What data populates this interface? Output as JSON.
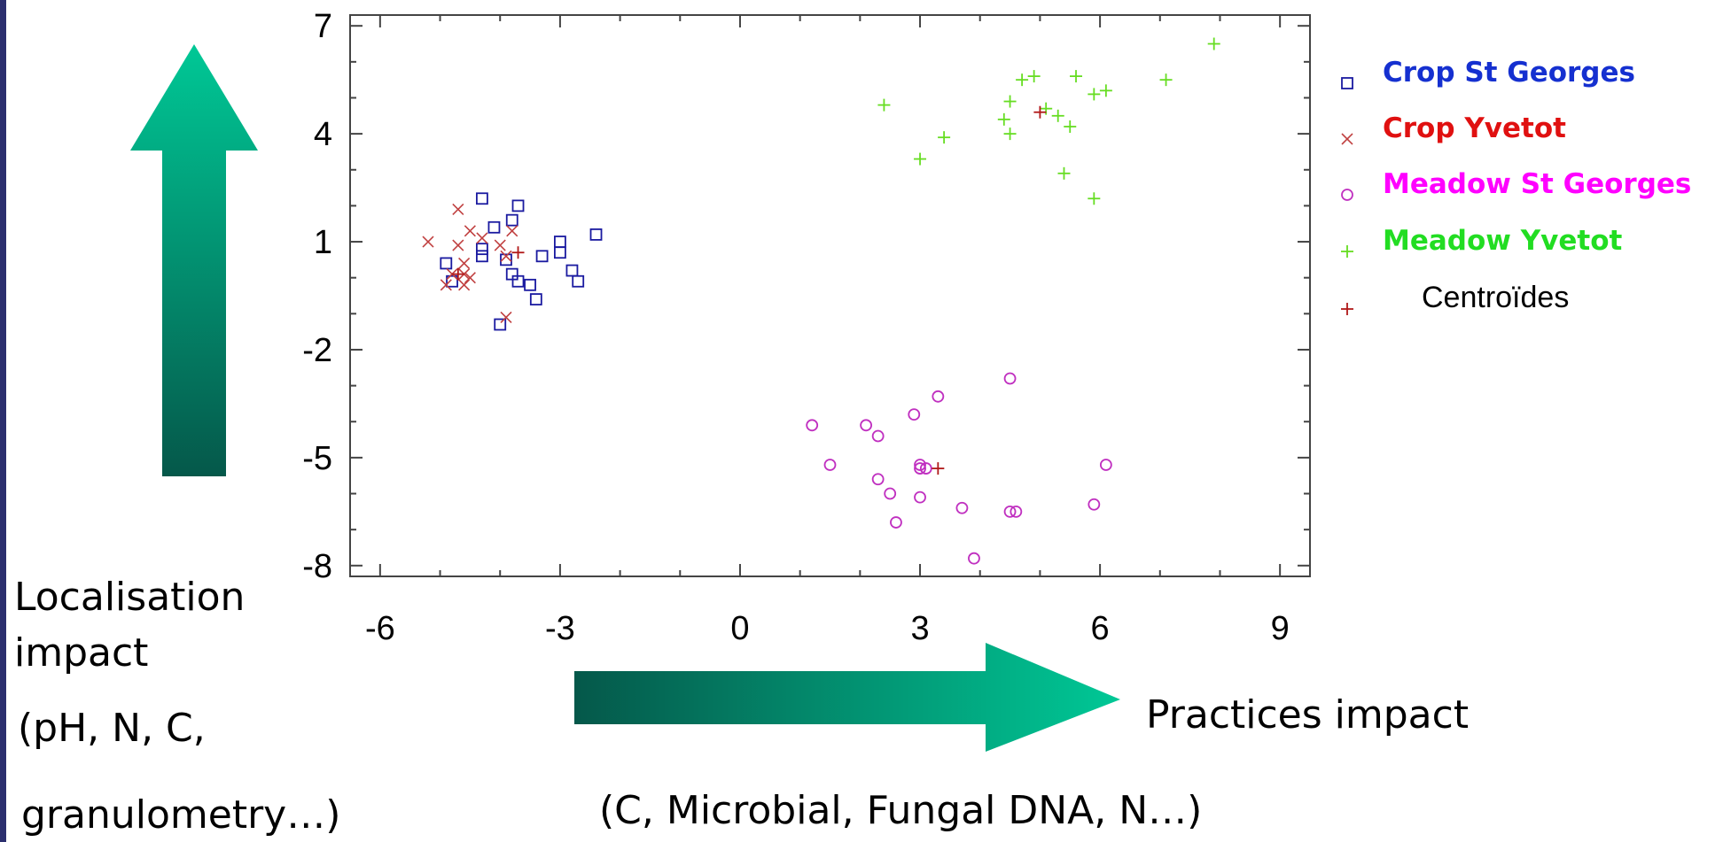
{
  "chart_data": {
    "type": "scatter",
    "title": "",
    "xlabel": "",
    "ylabel": "",
    "xlim": [
      -6.5,
      9.5
    ],
    "ylim": [
      -8.3,
      7.3
    ],
    "xticks": [
      "-6",
      "-3",
      "0",
      "3",
      "6",
      "9"
    ],
    "yticks": [
      "7",
      "4",
      "1",
      "-2",
      "-5",
      "-8"
    ],
    "grid": false,
    "legend_position": "right",
    "series": [
      {
        "name": "Crop St Georges",
        "marker": "square",
        "color": "#1a1aa0",
        "label_color": "#1530d0",
        "points": [
          [
            -4.3,
            2.2
          ],
          [
            -3.7,
            2.0
          ],
          [
            -3.8,
            1.6
          ],
          [
            -4.1,
            1.4
          ],
          [
            -2.4,
            1.2
          ],
          [
            -3.0,
            1.0
          ],
          [
            -3.0,
            0.7
          ],
          [
            -4.3,
            0.8
          ],
          [
            -4.3,
            0.6
          ],
          [
            -3.3,
            0.6
          ],
          [
            -3.9,
            0.5
          ],
          [
            -4.9,
            0.4
          ],
          [
            -2.8,
            0.2
          ],
          [
            -3.8,
            0.1
          ],
          [
            -3.7,
            -0.1
          ],
          [
            -3.5,
            -0.2
          ],
          [
            -2.7,
            -0.1
          ],
          [
            -4.8,
            -0.1
          ],
          [
            -3.4,
            -0.6
          ],
          [
            -4.0,
            -1.3
          ]
        ]
      },
      {
        "name": "Crop Yvetot",
        "marker": "x",
        "color": "#c04040",
        "label_color": "#e01010",
        "points": [
          [
            -4.7,
            1.9
          ],
          [
            -5.2,
            1.0
          ],
          [
            -4.5,
            1.3
          ],
          [
            -4.0,
            0.9
          ],
          [
            -3.8,
            1.3
          ],
          [
            -4.7,
            0.9
          ],
          [
            -4.6,
            0.4
          ],
          [
            -3.9,
            0.6
          ],
          [
            -4.8,
            0.1
          ],
          [
            -4.5,
            0.0
          ],
          [
            -4.6,
            -0.2
          ],
          [
            -4.9,
            -0.2
          ],
          [
            -3.9,
            -1.1
          ],
          [
            -4.3,
            1.1
          ],
          [
            -4.6,
            0.1
          ]
        ]
      },
      {
        "name": "Meadow St Georges",
        "marker": "circle",
        "color": "#c030c0",
        "label_color": "#ff00ff",
        "points": [
          [
            4.5,
            -2.8
          ],
          [
            3.3,
            -3.3
          ],
          [
            2.9,
            -3.8
          ],
          [
            1.2,
            -4.1
          ],
          [
            2.1,
            -4.1
          ],
          [
            2.3,
            -4.4
          ],
          [
            1.5,
            -5.2
          ],
          [
            3.0,
            -5.2
          ],
          [
            3.0,
            -5.3
          ],
          [
            3.1,
            -5.3
          ],
          [
            6.1,
            -5.2
          ],
          [
            2.3,
            -5.6
          ],
          [
            2.5,
            -6.0
          ],
          [
            3.0,
            -6.1
          ],
          [
            3.7,
            -6.4
          ],
          [
            4.5,
            -6.5
          ],
          [
            4.6,
            -6.5
          ],
          [
            5.9,
            -6.3
          ],
          [
            2.6,
            -6.8
          ],
          [
            3.9,
            -7.8
          ]
        ]
      },
      {
        "name": "Meadow Yvetot",
        "marker": "plus",
        "color": "#66dd22",
        "label_color": "#22dd22",
        "points": [
          [
            7.9,
            6.5
          ],
          [
            7.1,
            5.5
          ],
          [
            5.6,
            5.6
          ],
          [
            4.9,
            5.6
          ],
          [
            4.7,
            5.5
          ],
          [
            6.1,
            5.2
          ],
          [
            5.9,
            5.1
          ],
          [
            2.4,
            4.8
          ],
          [
            4.5,
            4.9
          ],
          [
            5.1,
            4.7
          ],
          [
            5.3,
            4.5
          ],
          [
            4.4,
            4.4
          ],
          [
            5.5,
            4.2
          ],
          [
            4.5,
            4.0
          ],
          [
            3.4,
            3.9
          ],
          [
            3.0,
            3.3
          ],
          [
            5.4,
            2.9
          ],
          [
            5.9,
            2.2
          ]
        ]
      },
      {
        "name": "Centroïdes",
        "marker": "plus",
        "color": "#b01818",
        "label_color": "#000000",
        "points": [
          [
            -3.7,
            0.7
          ],
          [
            -4.7,
            0.1
          ],
          [
            3.3,
            -5.3
          ],
          [
            5.0,
            4.6
          ]
        ]
      }
    ]
  },
  "annotations": {
    "y_arrow_line1": "Localisation",
    "y_arrow_line2": "impact",
    "y_arrow_line3": "(pH, N, C,",
    "y_arrow_line4": "granulometry…)",
    "x_arrow_label": "Practices impact",
    "x_arrow_sub": "(C, Microbial, Fungal DNA, N…)"
  },
  "colors": {
    "arrow_light": "#00c896",
    "arrow_dark": "#05584a",
    "frame": "#444444",
    "page_edge": "#2b2f6e"
  }
}
